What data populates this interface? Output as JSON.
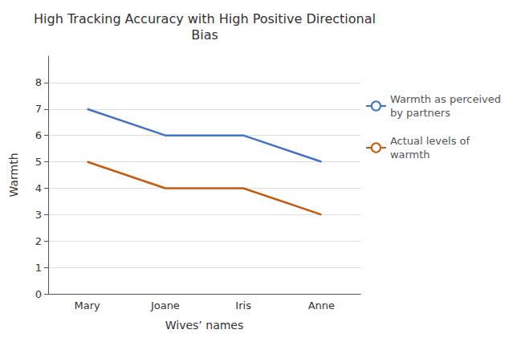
{
  "chart_data": {
    "type": "line",
    "title": "High Tracking Accuracy with High Positive Directional\nBias",
    "xlabel": "Wives’ names",
    "ylabel": "Warmth",
    "categories": [
      "Mary",
      "Joane",
      "Iris",
      "Anne"
    ],
    "series": [
      {
        "name": "Warmth as perceived\nby partners",
        "color": "#4472C4",
        "values": [
          7,
          6,
          6,
          5
        ]
      },
      {
        "name": "Actual levels of\nwarmth",
        "color": "#C55A11",
        "values": [
          5,
          4,
          4,
          3
        ]
      }
    ],
    "ylim": [
      0,
      9
    ],
    "yticks": [
      0,
      1,
      2,
      3,
      4,
      5,
      6,
      7,
      8
    ],
    "grid": true,
    "legend": "right"
  }
}
